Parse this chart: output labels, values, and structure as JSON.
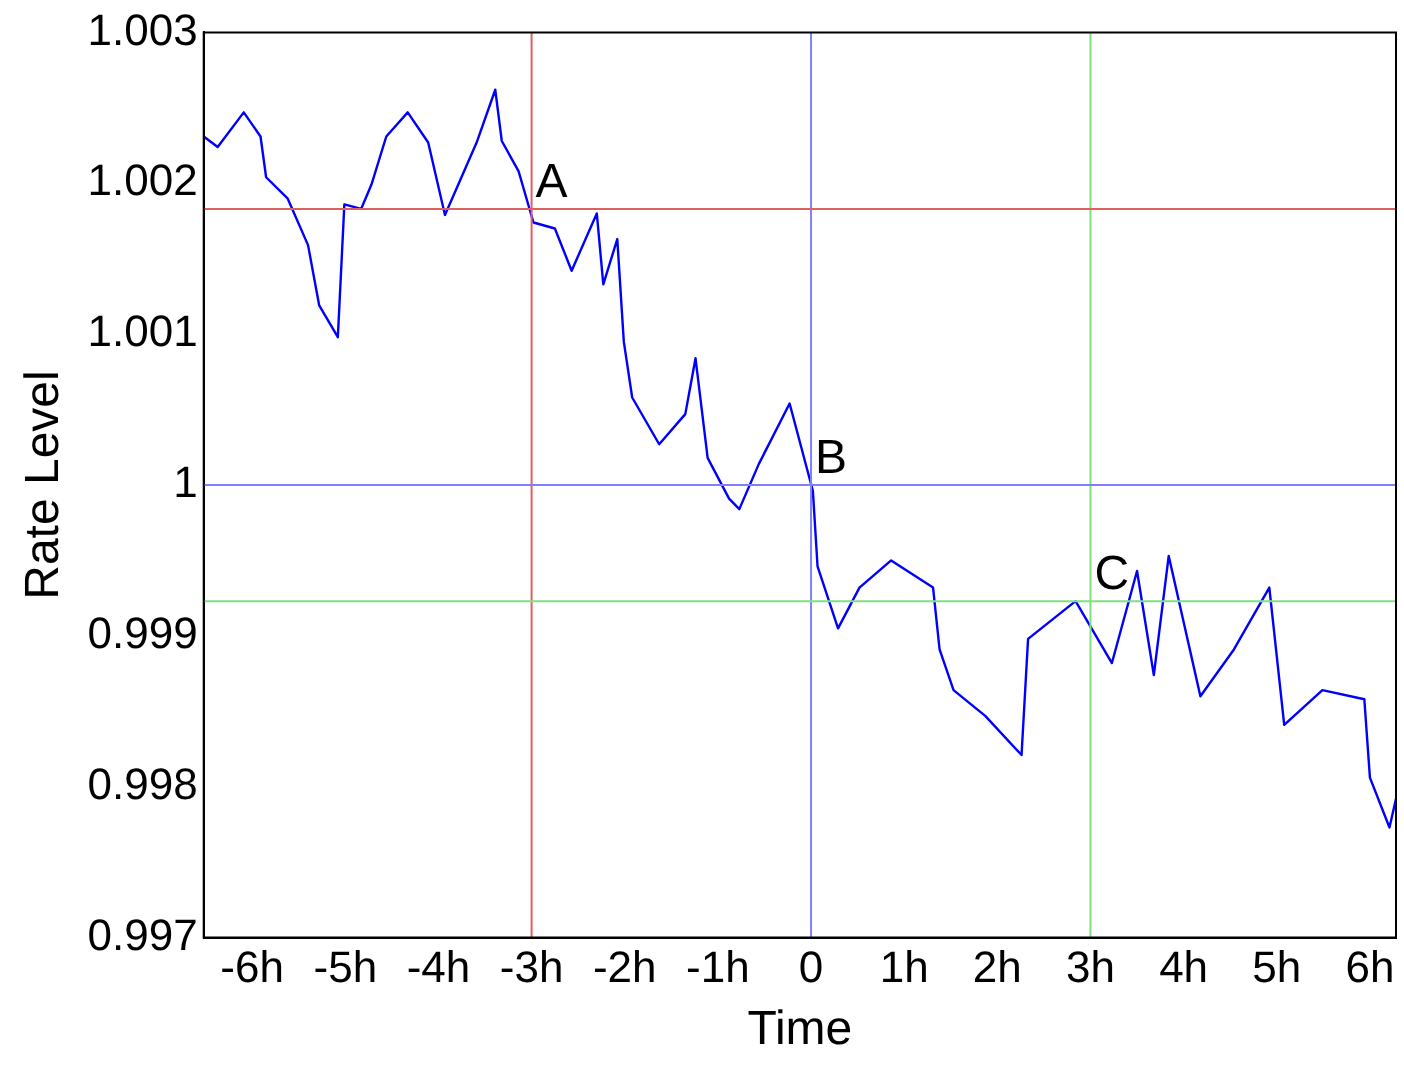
{
  "chart_data": {
    "type": "line",
    "xlabel": "Time",
    "ylabel": "Rate Level",
    "grid": false,
    "legend": false,
    "marker": "none",
    "line_style": "solid",
    "xlim": [
      -6.52,
      6.28
    ],
    "ylim": [
      0.997,
      1.003
    ],
    "xticks": [
      {
        "value": -6,
        "label": "-6h"
      },
      {
        "value": -5,
        "label": "-5h"
      },
      {
        "value": -4,
        "label": "-4h"
      },
      {
        "value": -3,
        "label": "-3h"
      },
      {
        "value": -2,
        "label": "-2h"
      },
      {
        "value": -1,
        "label": "-1h"
      },
      0,
      {
        "value": 1,
        "label": "1h"
      },
      {
        "value": 2,
        "label": "2h"
      },
      {
        "value": 3,
        "label": "3h"
      },
      {
        "value": 4,
        "label": "4h"
      },
      {
        "value": 5,
        "label": "5h"
      },
      {
        "value": 6,
        "label": "6h"
      }
    ],
    "yticks": [
      0.997,
      0.998,
      0.999,
      1,
      1.001,
      1.002,
      1.003
    ],
    "x": [
      -6.52,
      -6.37,
      -6.09,
      -5.91,
      -5.85,
      -5.62,
      -5.4,
      -5.28,
      -5.08,
      -5.01,
      -4.83,
      -4.72,
      -4.56,
      -4.33,
      -4.11,
      -3.93,
      -3.59,
      -3.39,
      -3.32,
      -3.14,
      -2.98,
      -2.75,
      -2.57,
      -2.3,
      -2.23,
      -2.08,
      -2.01,
      -1.92,
      -1.63,
      -1.35,
      -1.24,
      -1.11,
      -0.88,
      -0.77,
      -0.56,
      -0.23,
      0.02,
      0.07,
      0.29,
      0.52,
      0.86,
      1.31,
      1.38,
      1.53,
      1.87,
      2.26,
      2.33,
      2.84,
      3.23,
      3.5,
      3.68,
      3.84,
      4.18,
      4.54,
      4.92,
      5.08,
      5.49,
      5.94,
      6.0,
      6.21,
      6.28
    ],
    "series": [
      {
        "color": "#0000ff",
        "values": [
          1.00231,
          1.00224,
          1.00247,
          1.00231,
          1.00204,
          1.0019,
          1.00159,
          1.00119,
          1.00098,
          1.00186,
          1.00183,
          1.00199,
          1.00231,
          1.00247,
          1.00227,
          1.00179,
          1.00227,
          1.00262,
          1.00228,
          1.00208,
          1.00174,
          1.0017,
          1.00142,
          1.0018,
          1.00133,
          1.00163,
          1.00095,
          1.00058,
          1.00027,
          1.00047,
          1.00084,
          1.00018,
          0.99991,
          0.99984,
          1.00014,
          1.00054,
          0.99996,
          0.99946,
          0.99905,
          0.99932,
          0.9995,
          0.99932,
          0.99891,
          0.99864,
          0.99847,
          0.99821,
          0.99898,
          0.99923,
          0.99882,
          0.99943,
          0.99874,
          0.99953,
          0.9986,
          0.99891,
          0.99932,
          0.99841,
          0.99864,
          0.99858,
          0.99806,
          0.99773,
          0.99792
        ]
      }
    ],
    "ref_lines": [
      {
        "axis": "x",
        "value": -3,
        "color": "#e06060"
      },
      {
        "axis": "x",
        "value": 0,
        "color": "#8080ff"
      },
      {
        "axis": "x",
        "value": 3,
        "color": "#80e080"
      },
      {
        "axis": "y",
        "value": 1.00183,
        "color": "#e06060"
      },
      {
        "axis": "y",
        "value": 1,
        "color": "#8080ff"
      },
      {
        "axis": "y",
        "value": 0.99923,
        "color": "#80e080"
      }
    ],
    "annotations": [
      {
        "text": "A",
        "x": -3,
        "y": 1.00183
      },
      {
        "text": "B",
        "x": 0,
        "y": 1
      },
      {
        "text": "C",
        "x": 3,
        "y": 0.99923
      }
    ]
  }
}
